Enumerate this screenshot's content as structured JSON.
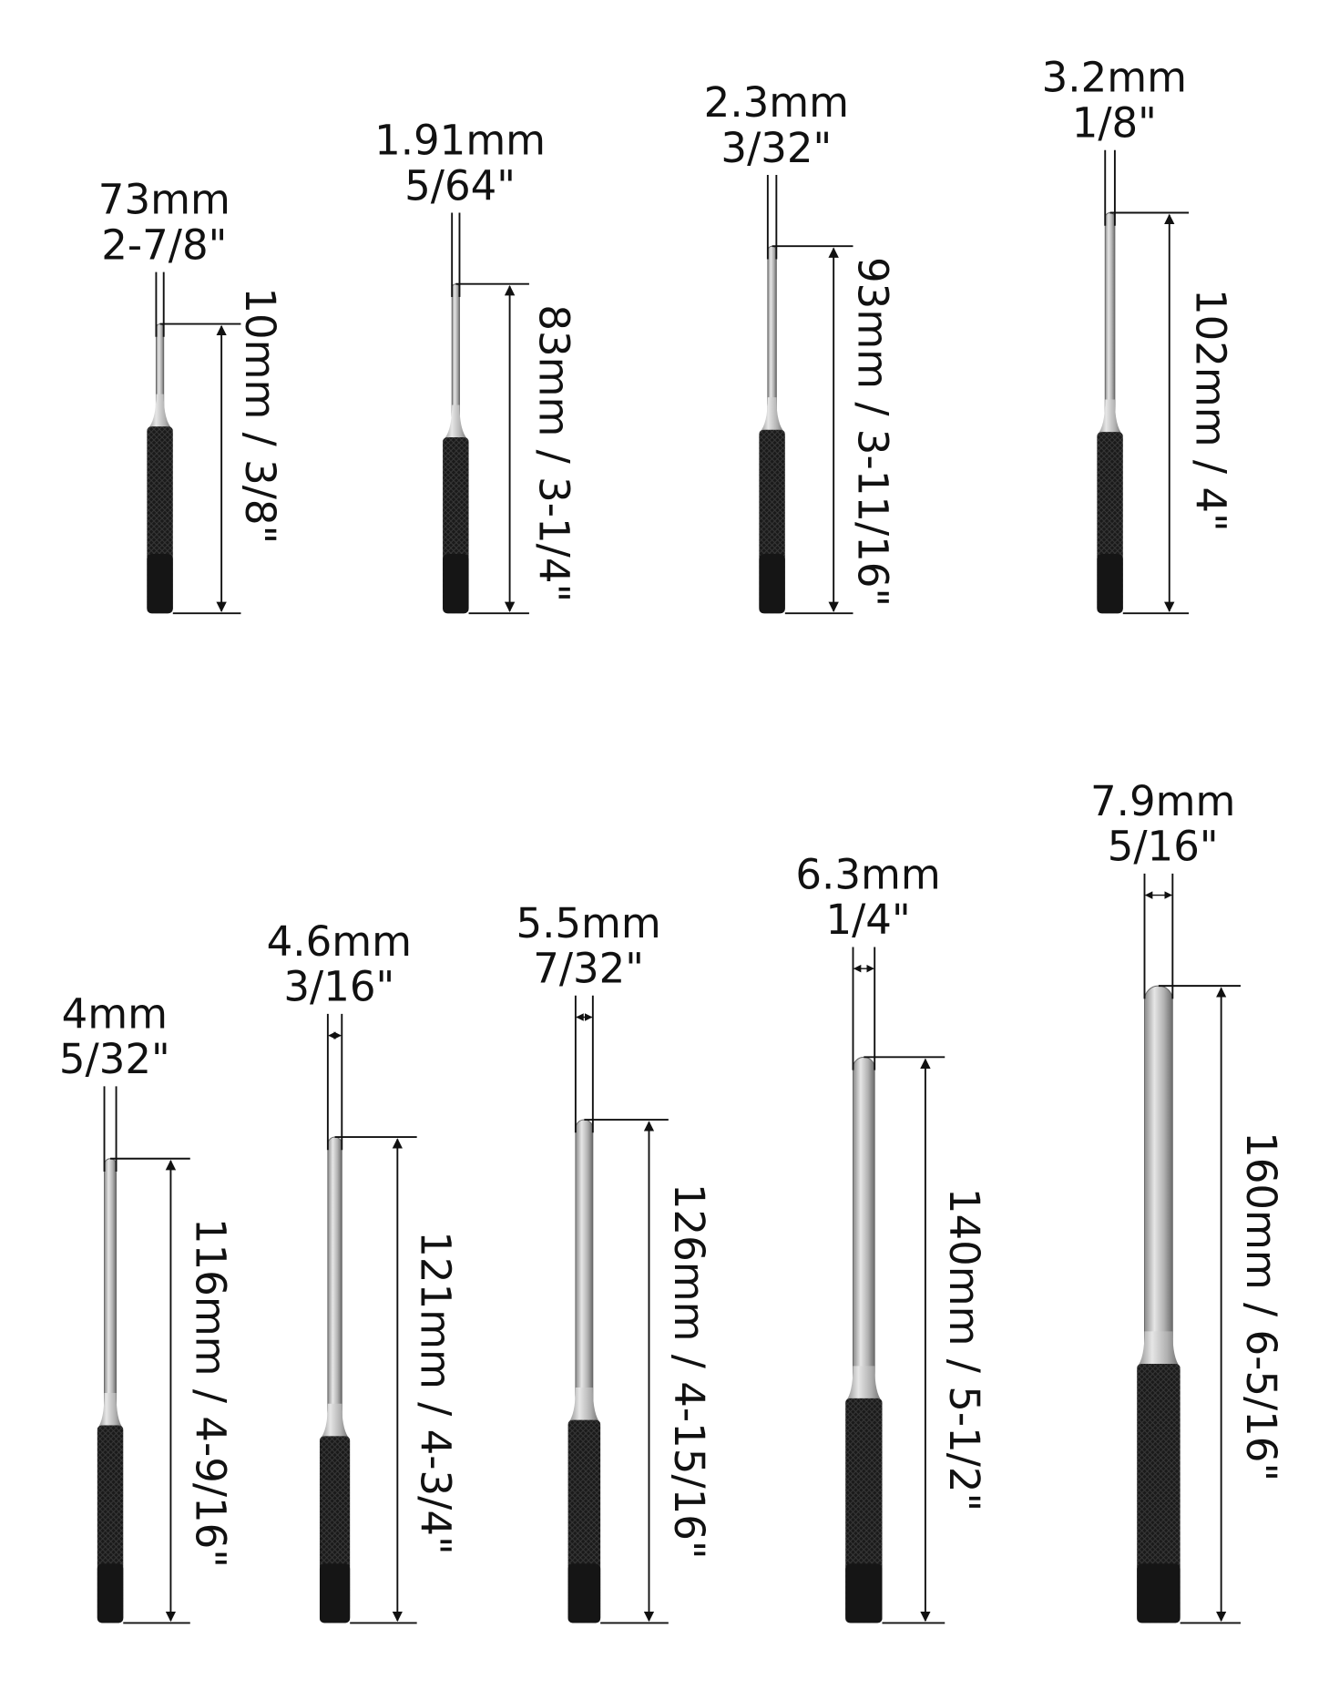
{
  "punches": [
    {
      "diameter_mm": "73mm",
      "diameter_in": "2-7/8\"",
      "length": "10mm / 3/8\""
    },
    {
      "diameter_mm": "1.91mm",
      "diameter_in": "5/64\"",
      "length": "83mm / 3-1/4\""
    },
    {
      "diameter_mm": "2.3mm",
      "diameter_in": "3/32\"",
      "length": "93mm / 3-11/16\""
    },
    {
      "diameter_mm": "3.2mm",
      "diameter_in": "1/8\"",
      "length": "102mm / 4\""
    },
    {
      "diameter_mm": "4mm",
      "diameter_in": "5/32\"",
      "length": "116mm / 4-9/16\""
    },
    {
      "diameter_mm": "4.6mm",
      "diameter_in": "3/16\"",
      "length": "121mm / 4-3/4\""
    },
    {
      "diameter_mm": "5.5mm",
      "diameter_in": "7/32\"",
      "length": "126mm / 4-15/16\""
    },
    {
      "diameter_mm": "6.3mm",
      "diameter_in": "1/4\"",
      "length": "140mm / 5-1/2\""
    },
    {
      "diameter_mm": "7.9mm",
      "diameter_in": "5/16\"",
      "length": "160mm / 6-5/16\""
    }
  ]
}
